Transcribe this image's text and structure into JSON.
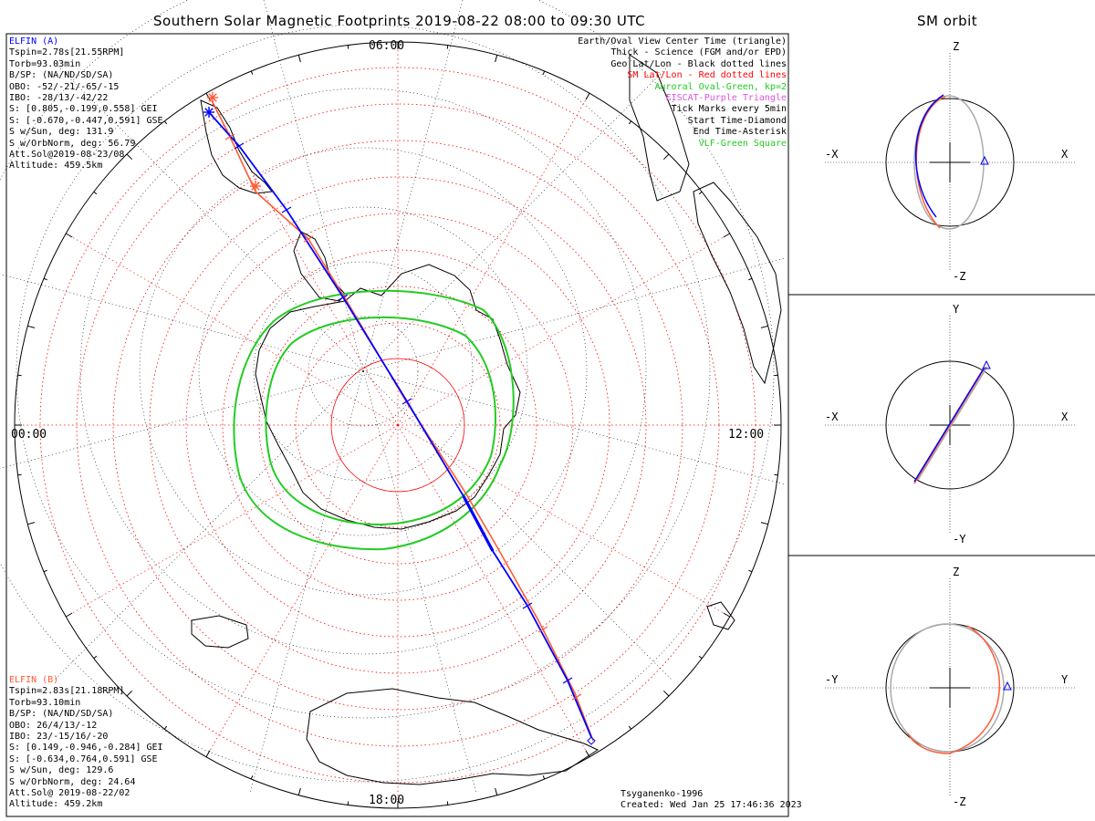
{
  "main_title": "Southern Solar Magnetic Footprints 2019-08-22 08:00 to 09:30 UTC",
  "orbit_title": "SM orbit",
  "time_labels": {
    "top": "06:00",
    "left": "00:00",
    "right": "12:00",
    "bottom": "18:00"
  },
  "sat_a": {
    "name": "ELFIN (A)",
    "color": "#0000ff",
    "lines": [
      "Tspin=2.78s[21.55RPM]",
      "Torb=93.03min",
      "B/SP: (NA/ND/SD/SA)",
      "OBO: -52/-21/-65/-15",
      "IBO: -28/13/-42/22",
      "S: [0.805,-0.199,0.558] GEI",
      "S: [-0.670,-0.447,0.591] GSE",
      "S w/Sun, deg: 131.9",
      "S w/OrbNorm, deg: 56.79",
      "Att.Sol@2019-08-23/08",
      "Altitude: 459.5km"
    ]
  },
  "sat_b": {
    "name": "ELFIN (B)",
    "color": "#ff5a36",
    "lines": [
      "Tspin=2.83s[21.18RPM]",
      "Torb=93.10min",
      "B/SP: (NA/ND/SD/SA)",
      "OBO: 26/4/13/-12",
      "IBO: 23/-15/16/-20",
      "S: [0.149,-0.946,-0.284] GEI",
      "S: [-0.634,0.764,0.591] GSE",
      "S w/Sun, deg: 129.6",
      "S w/OrbNorm, deg: 24.64",
      "Att.Sol@ 2019-08-22/02",
      "Altitude: 459.2km"
    ]
  },
  "legend": [
    {
      "text": "Earth/Oval View Center Time (triangle)",
      "color": "#000000"
    },
    {
      "text": "Thick - Science (FGM and/or EPD)",
      "color": "#000000"
    },
    {
      "text": "Geo Lat/Lon - Black dotted lines",
      "color": "#000000"
    },
    {
      "text": "SM Lat/Lon - Red dotted lines",
      "color": "#ff0000"
    },
    {
      "text": "Auroral Oval-Green, kp=2",
      "color": "#22cc22"
    },
    {
      "text": "EISCAT-Purple Triangle",
      "color": "#dd55dd"
    },
    {
      "text": "Tick Marks every 5min",
      "color": "#000000"
    },
    {
      "text": "Start Time-Diamond",
      "color": "#000000"
    },
    {
      "text": "End Time-Asterisk",
      "color": "#000000"
    },
    {
      "text": "VLF-Green Square",
      "color": "#22cc22"
    }
  ],
  "credit": [
    "Tsyganenko-1996",
    "Created: Wed Jan 25 17:46:36 2023"
  ],
  "panels": [
    {
      "h_neg": "-X",
      "h_pos": "X",
      "v_pos": "Z",
      "v_neg": "-Z"
    },
    {
      "h_neg": "-X",
      "h_pos": "X",
      "v_pos": "Y",
      "v_neg": "-Y"
    },
    {
      "h_neg": "-Y",
      "h_pos": "Y",
      "v_pos": "Z",
      "v_neg": "-Z"
    }
  ],
  "colors": {
    "blue": "#0000ff",
    "orange": "#ff5a36",
    "green": "#22cc22",
    "red_grid": "#ff0000",
    "gray": "#aaaaaa"
  }
}
